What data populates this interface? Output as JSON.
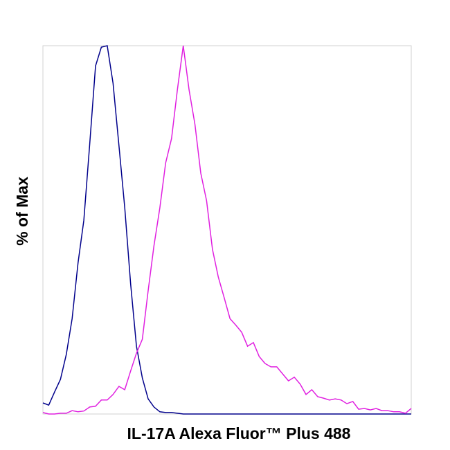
{
  "chart_data": {
    "type": "line",
    "ylabel": "% of Max",
    "xlabel": "IL-17A Alexa Fluor™ Plus 488",
    "x": [
      0,
      1,
      2,
      3,
      4,
      5,
      6,
      7,
      8,
      9,
      10,
      11,
      12,
      13,
      14,
      15,
      16,
      17,
      18,
      19,
      20,
      21,
      22,
      23,
      24,
      25,
      26,
      27,
      28,
      29,
      30,
      31,
      32,
      33,
      34,
      35,
      36,
      37,
      38,
      39,
      40,
      41,
      42,
      43,
      44,
      45,
      46,
      47,
      48,
      49,
      50,
      51,
      52,
      53,
      54,
      55,
      56,
      57,
      58,
      59,
      60,
      61,
      62,
      63
    ],
    "xlim": [
      0,
      63
    ],
    "ylim": [
      0,
      100
    ],
    "series": [
      {
        "color": "#00008b",
        "values": [
          3.0,
          2.4,
          6.0,
          9.4,
          16.2,
          25.9,
          41.0,
          52.6,
          73.3,
          94.5,
          99.6,
          100,
          89.8,
          72.9,
          56.0,
          35.3,
          18.4,
          9.8,
          4.1,
          1.9,
          0.6,
          0.4,
          0.4,
          0.2,
          0,
          0,
          0,
          0,
          0,
          0,
          0,
          0,
          0,
          0,
          0,
          0,
          0,
          0,
          0,
          0,
          0,
          0,
          0,
          0,
          0,
          0,
          0,
          0,
          0,
          0,
          0,
          0,
          0,
          0,
          0,
          0,
          0,
          0,
          0,
          0,
          0,
          0,
          0,
          0
        ]
      },
      {
        "color": "#e020e0",
        "values": [
          0.4,
          0,
          0,
          0.2,
          0.2,
          0.9,
          0.6,
          0.8,
          1.9,
          2.1,
          3.8,
          3.8,
          5.3,
          7.5,
          6.6,
          11.7,
          16.5,
          20.3,
          33.5,
          45.7,
          56.0,
          68.2,
          74.8,
          88.0,
          100,
          88.0,
          78.6,
          65.4,
          57.9,
          44.7,
          37.2,
          31.6,
          25.9,
          24.1,
          22.2,
          18.4,
          19.4,
          15.6,
          13.7,
          12.8,
          12.8,
          10.9,
          9.0,
          10.0,
          8.1,
          5.3,
          6.6,
          4.7,
          4.3,
          3.8,
          4.1,
          3.8,
          2.8,
          3.4,
          1.3,
          1.5,
          1.1,
          1.5,
          0.9,
          0.9,
          0.6,
          0.6,
          0.2,
          1.5
        ]
      }
    ]
  }
}
